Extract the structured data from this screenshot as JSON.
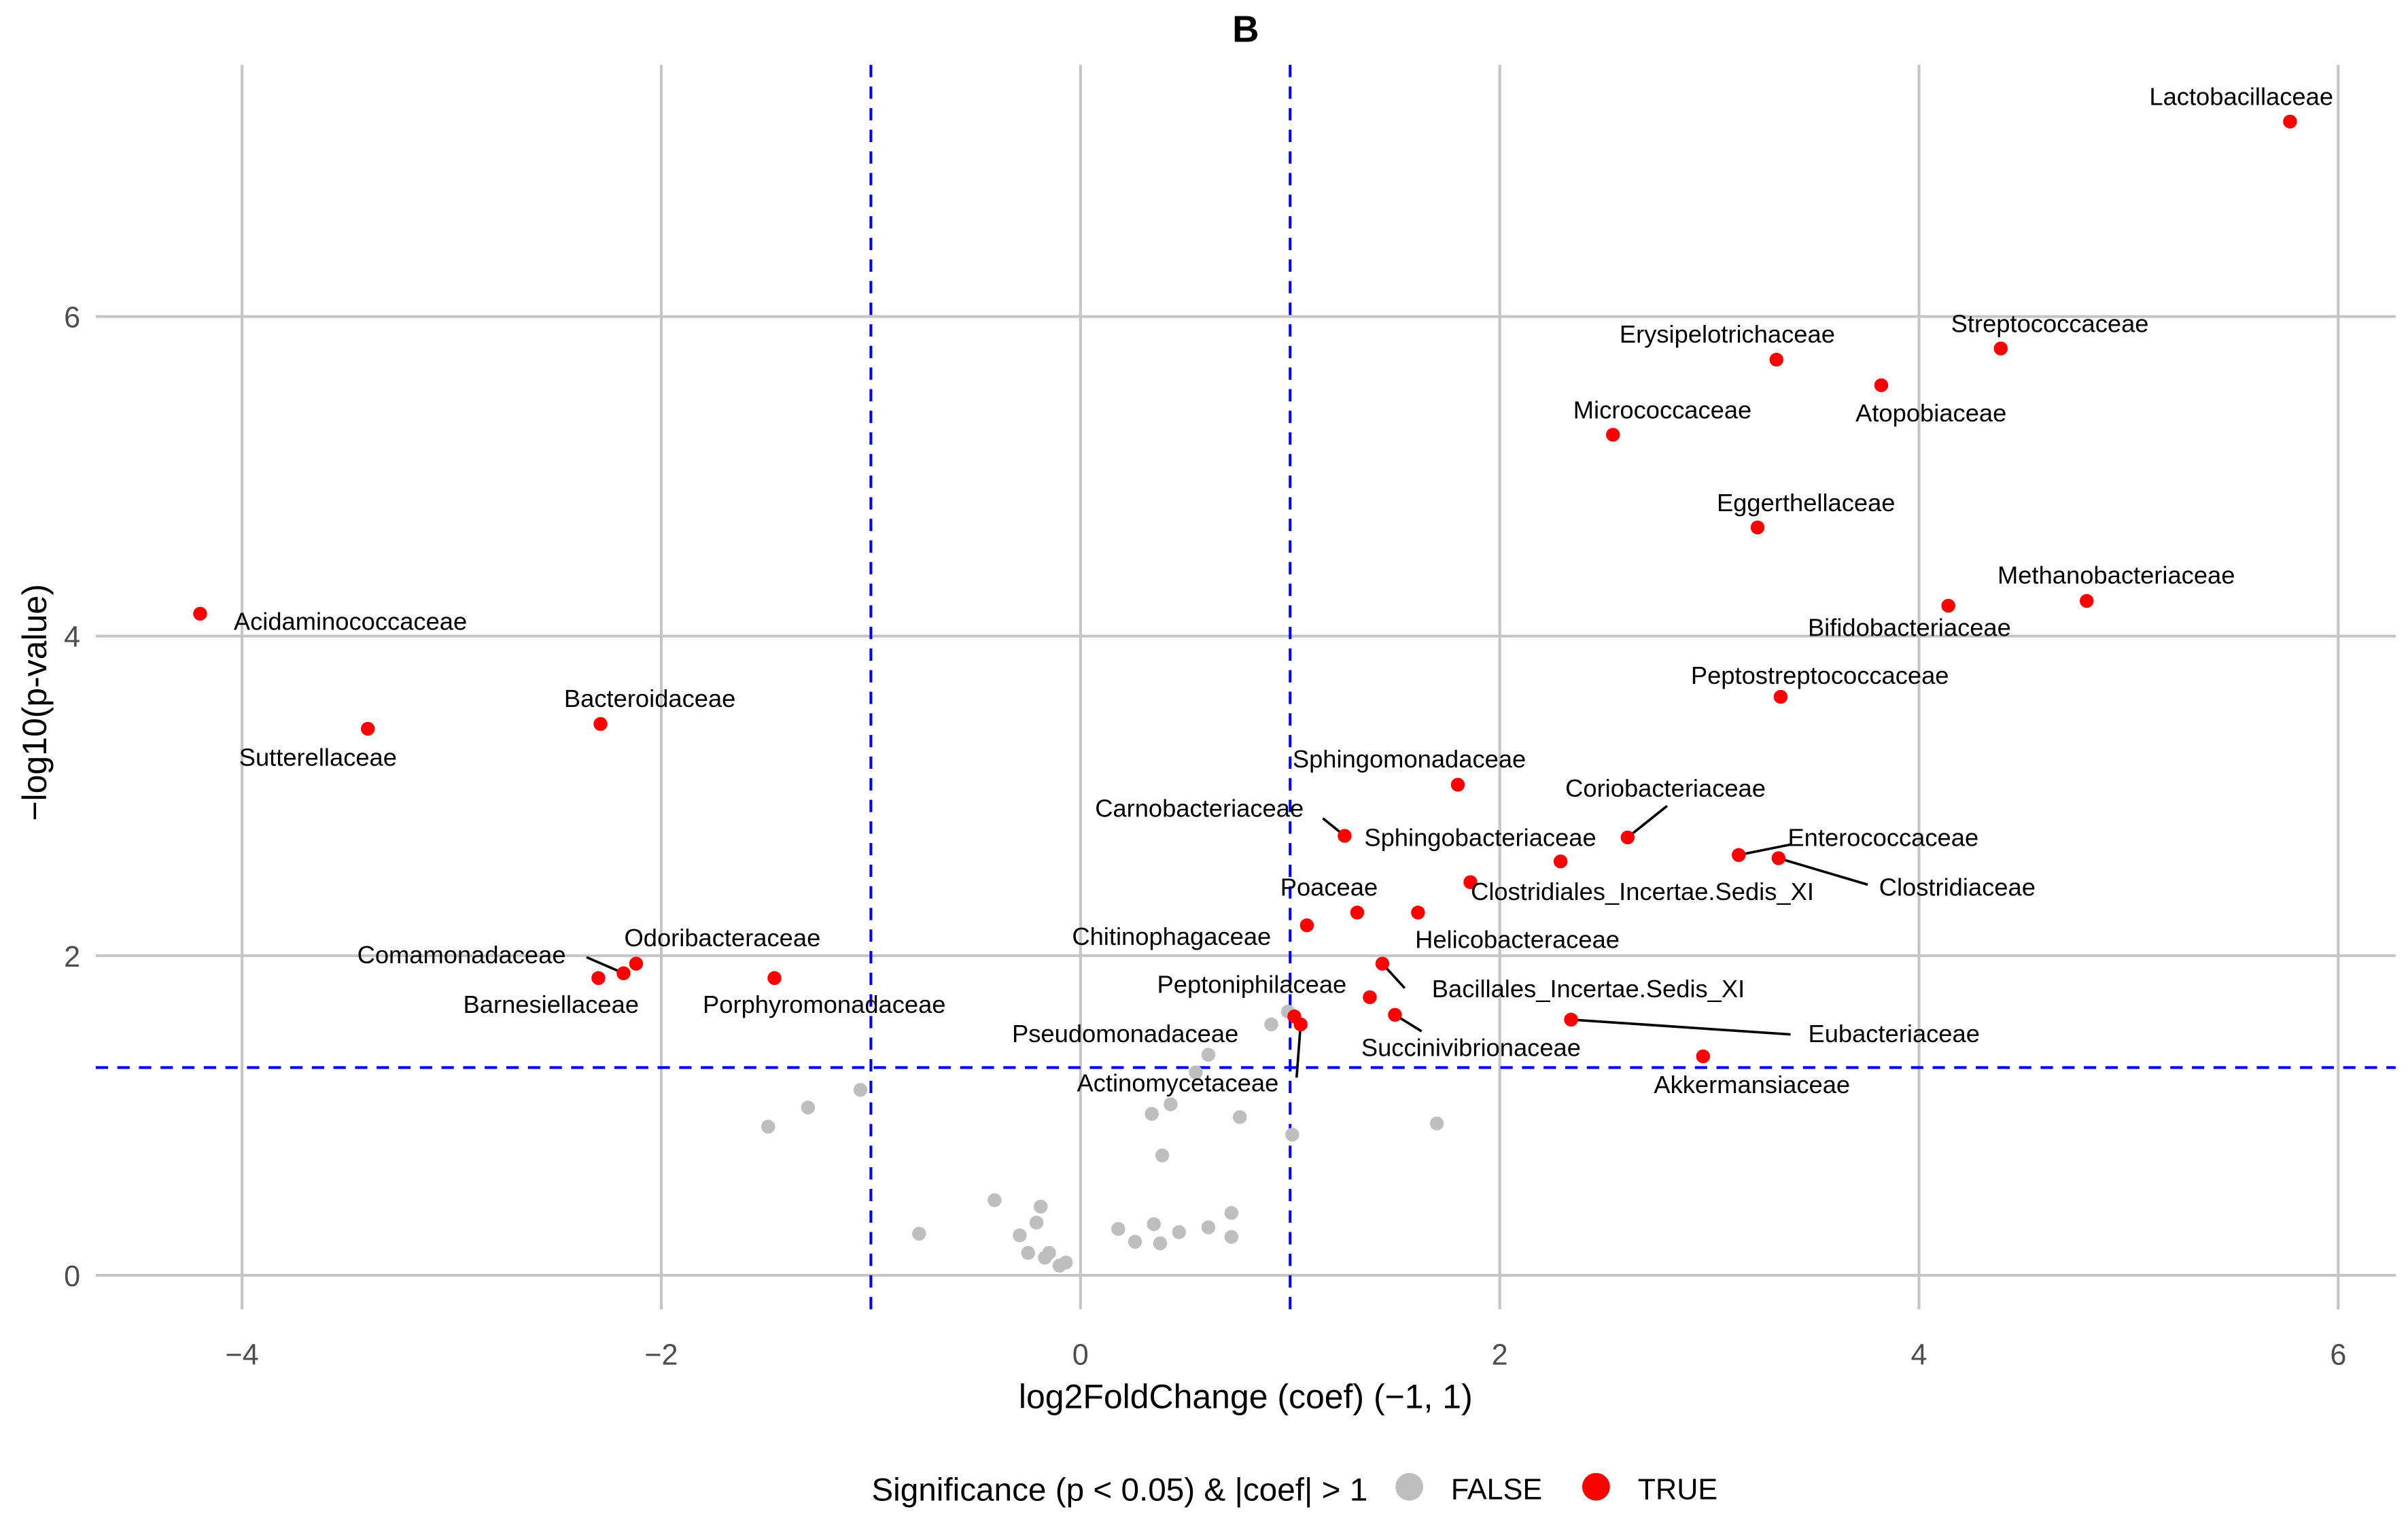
{
  "chart_data": {
    "type": "scatter",
    "title": "B",
    "xlabel": "log2FoldChange (coef) (−1, 1)",
    "ylabel": "−log10(p-value)",
    "xlim": [
      -4.6,
      6.3
    ],
    "ylim": [
      -0.2,
      7.5
    ],
    "xticks": [
      -4,
      -2,
      0,
      2,
      4,
      6
    ],
    "xtick_labels": [
      "−4",
      "−2",
      "0",
      "2",
      "4",
      "6"
    ],
    "yticks": [
      0,
      2,
      4,
      6
    ],
    "ytick_labels": [
      "0",
      "2",
      "4",
      "6"
    ],
    "grid": true,
    "thresholds": {
      "x": [
        -1,
        1
      ],
      "y": 1.3,
      "color": "#0000ff"
    },
    "legend": {
      "title": "Significance (p < 0.05) & |coef| > 1",
      "placement": "bottom",
      "entries": [
        {
          "label": "FALSE",
          "color": "#bebebe"
        },
        {
          "label": "TRUE",
          "color": "#ff0000"
        }
      ]
    },
    "series": [
      {
        "name": "FALSE",
        "color": "#bebebe",
        "points": [
          [
            -1.49,
            0.93
          ],
          [
            -1.3,
            1.05
          ],
          [
            -1.05,
            1.16
          ],
          [
            -0.77,
            0.26
          ],
          [
            -0.41,
            0.47
          ],
          [
            -0.29,
            0.25
          ],
          [
            -0.25,
            0.14
          ],
          [
            -0.21,
            0.33
          ],
          [
            -0.19,
            0.43
          ],
          [
            -0.17,
            0.11
          ],
          [
            -0.15,
            0.14
          ],
          [
            -0.1,
            0.06
          ],
          [
            -0.07,
            0.08
          ],
          [
            0.18,
            0.29
          ],
          [
            0.26,
            0.21
          ],
          [
            0.34,
            1.01
          ],
          [
            0.35,
            0.32
          ],
          [
            0.38,
            0.2
          ],
          [
            0.39,
            0.75
          ],
          [
            0.43,
            1.07
          ],
          [
            0.47,
            0.27
          ],
          [
            0.55,
            1.27
          ],
          [
            0.61,
            1.38
          ],
          [
            0.61,
            0.3
          ],
          [
            0.76,
            0.99
          ],
          [
            0.72,
            0.39
          ],
          [
            0.72,
            0.24
          ],
          [
            0.91,
            1.57
          ],
          [
            0.99,
            1.65
          ],
          [
            1.01,
            0.88
          ],
          [
            1.7,
            0.95
          ]
        ]
      },
      {
        "name": "TRUE",
        "color": "#ff0000",
        "points": [
          {
            "label": "Lactobacillaceae",
            "x": 5.77,
            "y": 7.22
          },
          {
            "label": "Streptococcaceae",
            "x": 4.39,
            "y": 5.8
          },
          {
            "label": "Erysipelotrichaceae",
            "x": 3.32,
            "y": 5.73
          },
          {
            "label": "Atopobiaceae",
            "x": 3.82,
            "y": 5.57
          },
          {
            "label": "Micrococcaceae",
            "x": 2.54,
            "y": 5.26
          },
          {
            "label": "Eggerthellaceae",
            "x": 3.23,
            "y": 4.68
          },
          {
            "label": "Methanobacteriaceae",
            "x": 4.8,
            "y": 4.22
          },
          {
            "label": "Bifidobacteriaceae",
            "x": 4.14,
            "y": 4.19
          },
          {
            "label": "Peptostreptococcaceae",
            "x": 3.34,
            "y": 3.62
          },
          {
            "label": "Acidaminococcaceae",
            "x": -4.2,
            "y": 4.14
          },
          {
            "label": "Sutterellaceae",
            "x": -3.4,
            "y": 3.42
          },
          {
            "label": "Bacteroidaceae",
            "x": -2.29,
            "y": 3.45
          },
          {
            "label": "Sphingomonadaceae",
            "x": 1.8,
            "y": 3.07
          },
          {
            "label": "Carnobacteriaceae",
            "x": 1.26,
            "y": 2.75
          },
          {
            "label": "Coriobacteriaceae",
            "x": 2.61,
            "y": 2.74
          },
          {
            "label": "Sphingobacteriaceae",
            "x": 2.29,
            "y": 2.59
          },
          {
            "label": "Enterococcaceae",
            "x": 3.14,
            "y": 2.63
          },
          {
            "label": "Clostridiaceae",
            "x": 3.33,
            "y": 2.61
          },
          {
            "label": "Clostridiales_Incertae.Sedis_XI",
            "x": 1.86,
            "y": 2.46
          },
          {
            "label": "Poaceae",
            "x": 1.32,
            "y": 2.27
          },
          {
            "label": "Chitinophagaceae",
            "x": 1.08,
            "y": 2.19
          },
          {
            "label": "Helicobacteraceae",
            "x": 1.61,
            "y": 2.27
          },
          {
            "label": "Bacillales_Incertae.Sedis_XI",
            "x": 1.44,
            "y": 1.95
          },
          {
            "label": "Peptoniphilaceae",
            "x": 1.38,
            "y": 1.74
          },
          {
            "label": "Succinivibrionaceae",
            "x": 1.5,
            "y": 1.63
          },
          {
            "label": "Eubacteriaceae",
            "x": 2.34,
            "y": 1.6
          },
          {
            "label": "Akkermansiaceae",
            "x": 2.97,
            "y": 1.37
          },
          {
            "label": "Pseudomonadaceae",
            "x": 1.02,
            "y": 1.62
          },
          {
            "label": "Actinomycetaceae",
            "x": 1.05,
            "y": 1.57
          },
          {
            "label": "Odoribacteraceae",
            "x": -2.12,
            "y": 1.95
          },
          {
            "label": "Comamonadaceae",
            "x": -2.18,
            "y": 1.89
          },
          {
            "label": "Barnesiellaceae",
            "x": -2.3,
            "y": 1.86
          },
          {
            "label": "Porphyromonadaceae",
            "x": -1.46,
            "y": 1.86
          }
        ]
      }
    ]
  }
}
